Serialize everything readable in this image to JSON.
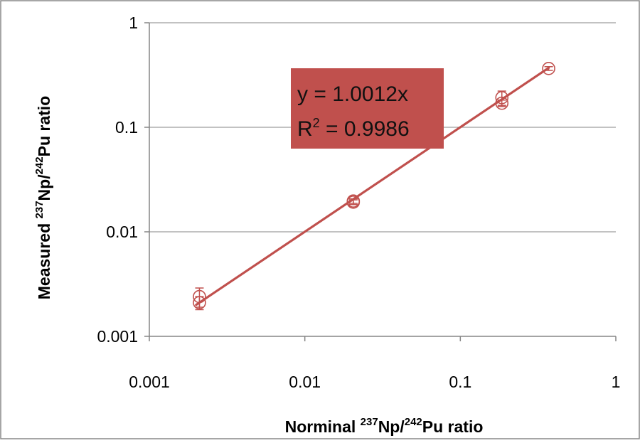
{
  "chart_data": {
    "type": "scatter",
    "title": "",
    "x_scale": "log",
    "y_scale": "log",
    "xlim": [
      0.001,
      1
    ],
    "ylim": [
      0.001,
      1
    ],
    "grid": {
      "horizontal": true,
      "vertical": false
    },
    "legend": "none",
    "x_ticks": [
      "0.001",
      "0.01",
      "0.1",
      "1"
    ],
    "y_ticks": [
      "0.001",
      "0.01",
      "0.1",
      "1"
    ],
    "xlabel": {
      "prefix": "Norminal ",
      "sup1": "237",
      "mid": "Np/",
      "sup2": "242",
      "suffix": "Pu ratio"
    },
    "ylabel": {
      "prefix": "Measured ",
      "sup1": "237",
      "mid": "Np/",
      "sup2": "242",
      "suffix": "Pu  ratio"
    },
    "series": [
      {
        "marker": "open-circle",
        "color": "#c0504d",
        "points": [
          {
            "x": 0.0021,
            "y": 0.0021,
            "err": 0.0003
          },
          {
            "x": 0.0021,
            "y": 0.0024,
            "err": 0.0005
          },
          {
            "x": 0.0205,
            "y": 0.0192,
            "err": 0.001
          },
          {
            "x": 0.0205,
            "y": 0.0197,
            "err": 0.001
          },
          {
            "x": 0.185,
            "y": 0.17,
            "err": 0.012
          },
          {
            "x": 0.185,
            "y": 0.192,
            "err": 0.03
          },
          {
            "x": 0.37,
            "y": 0.365,
            "err": 0.015
          }
        ]
      }
    ],
    "trendline": {
      "slope": 1.0012,
      "x_range": [
        0.002,
        0.37
      ],
      "color": "#c0504d",
      "equation": "y = 1.0012x",
      "r2_prefix": "R",
      "r2_sup": "2",
      "r2_value": " = 0.9986",
      "box_color": "#c0504d"
    }
  }
}
